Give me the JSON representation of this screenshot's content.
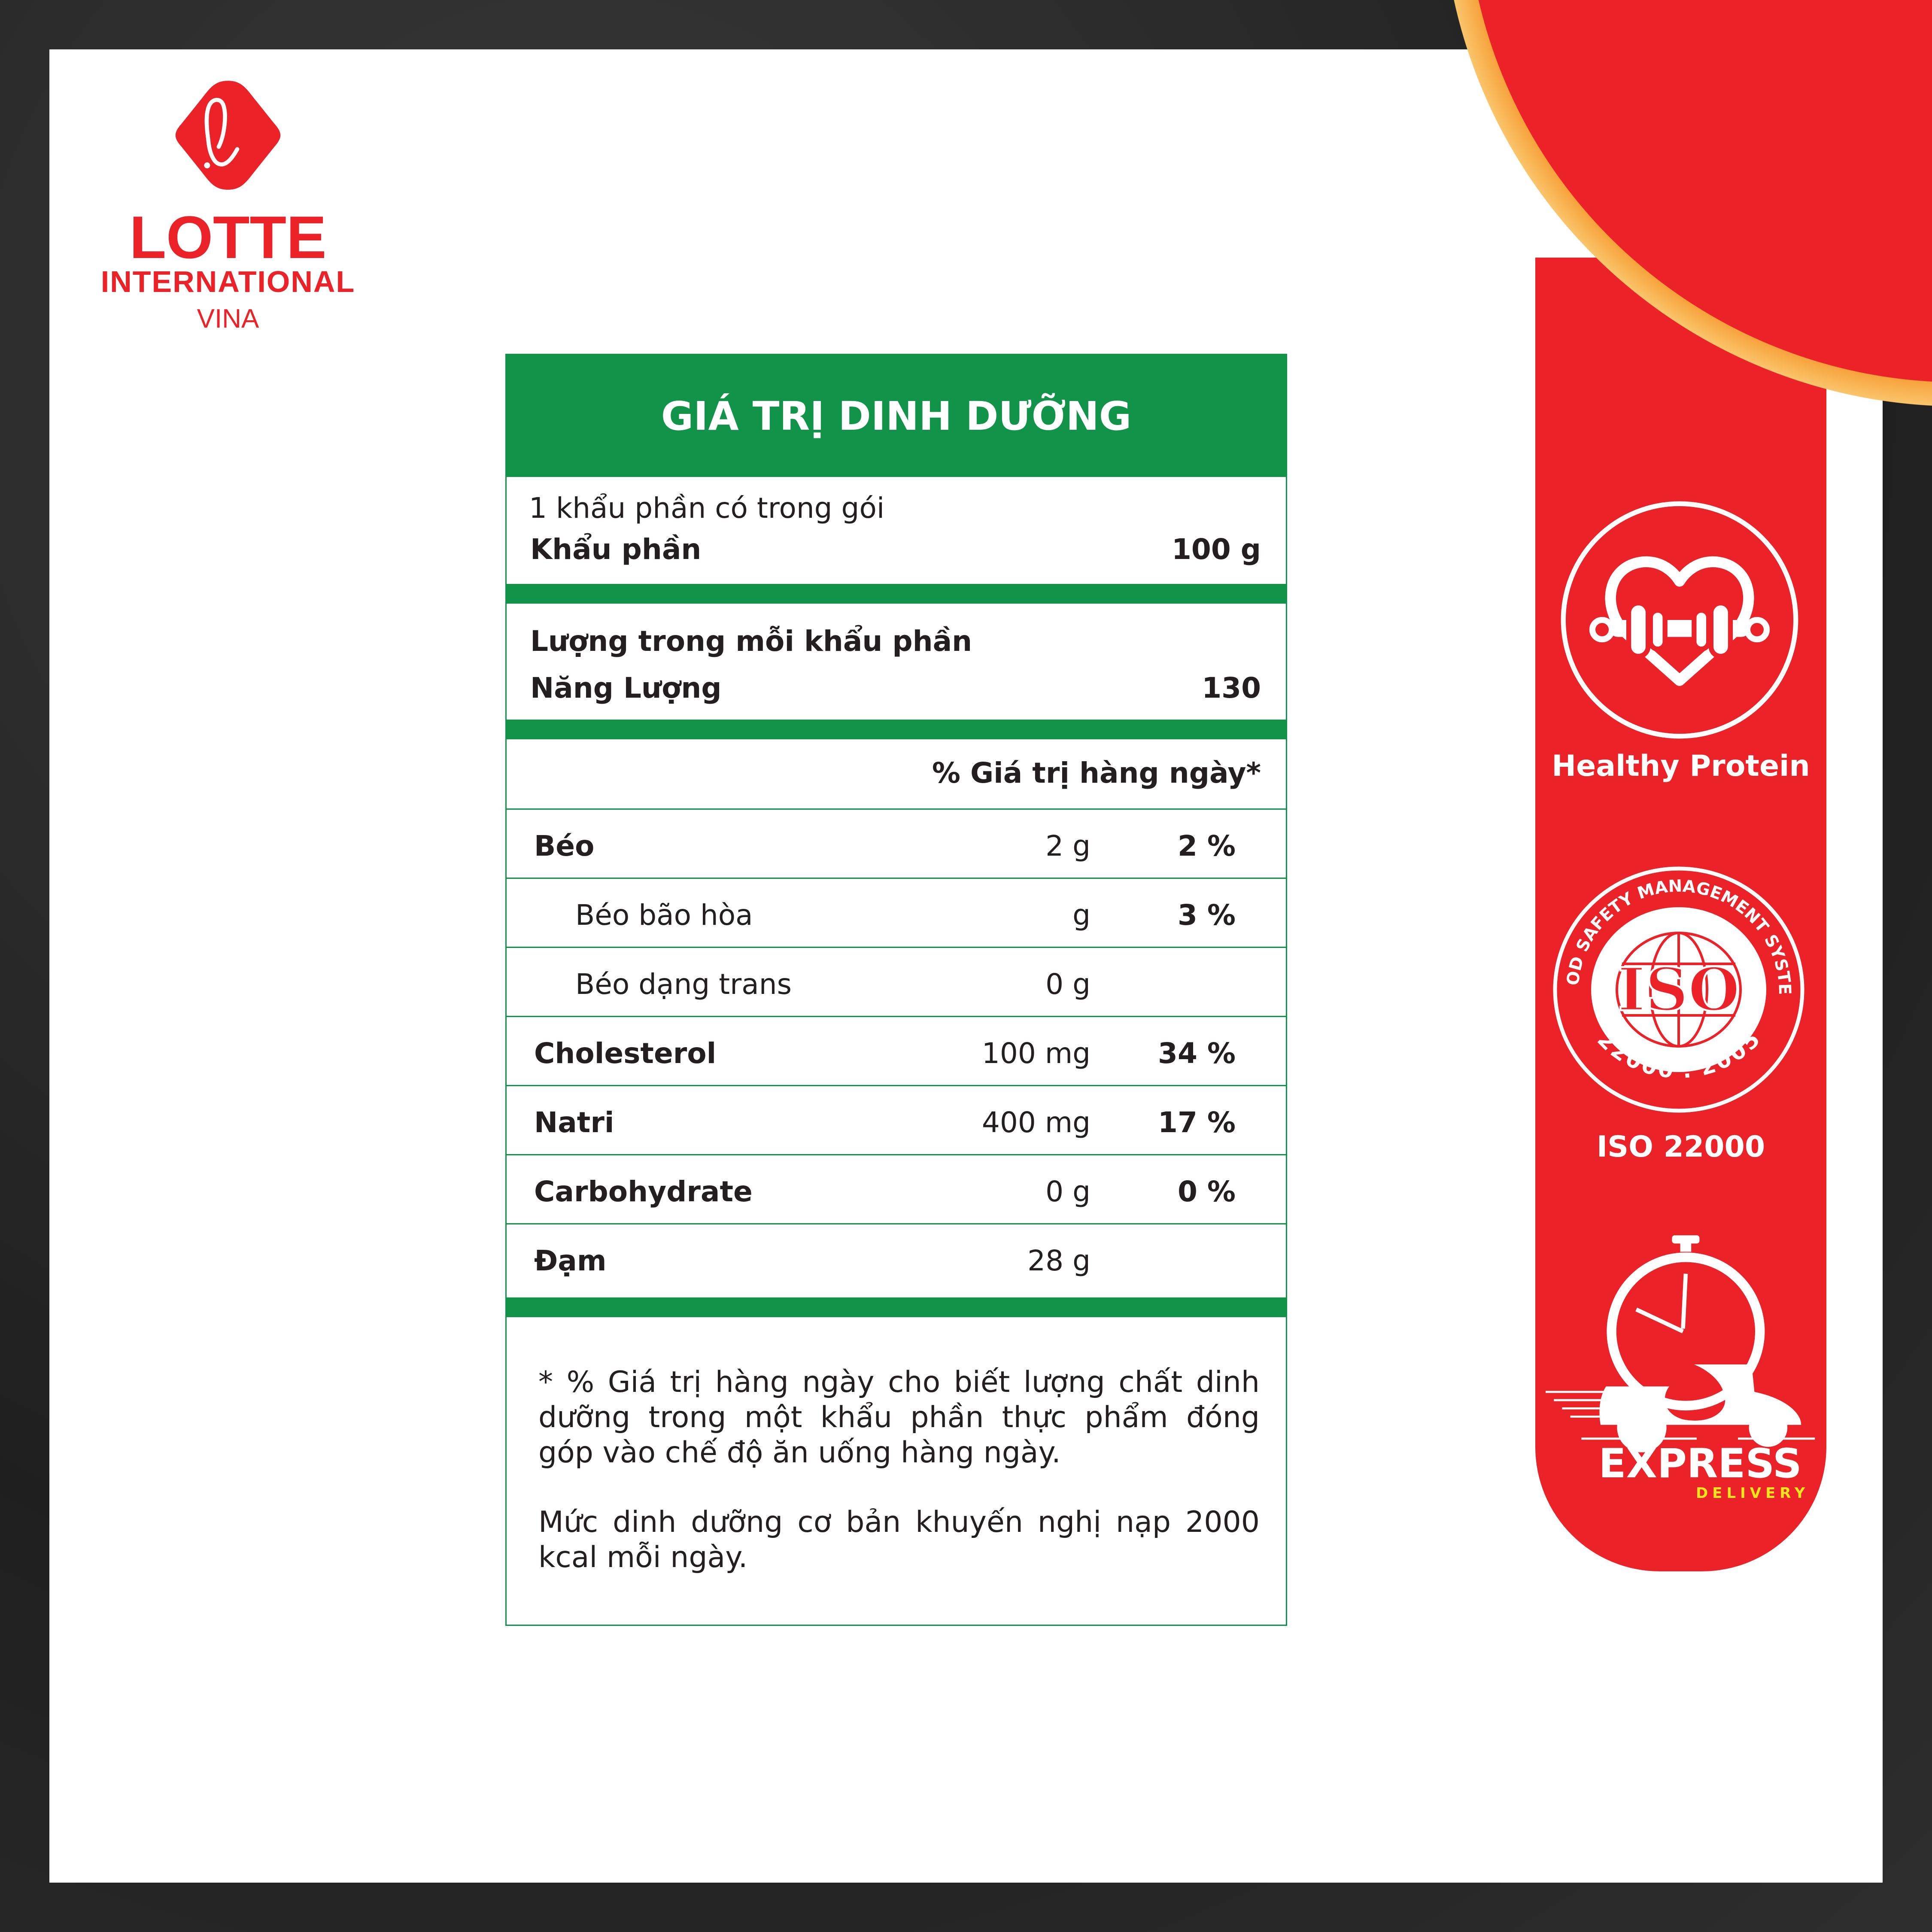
{
  "brand": {
    "name": "LOTTE",
    "line2": "INTERNATIONAL",
    "line3": "VINA",
    "color": "#ec2229"
  },
  "nutrition": {
    "title": "GIÁ TRỊ DINH DƯỠNG",
    "serving_note": "1 khẩu phần có trong gói",
    "serving_label": "Khẩu phần",
    "serving_value": "100 g",
    "per_serving_label": "Lượng trong mỗi khẩu phần",
    "energy_label": "Năng Lượng",
    "energy_value": "130",
    "dv_header": "% Giá trị hàng ngày*",
    "rows": [
      {
        "name": "Béo",
        "amount": "2 g",
        "percent": "2 %"
      },
      {
        "name": "Béo bão hòa",
        "amount": "g",
        "percent": "3 %"
      },
      {
        "name": "Béo dạng trans",
        "amount": "0 g",
        "percent": ""
      },
      {
        "name": "Cholesterol",
        "amount": "100 mg",
        "percent": "34 %"
      },
      {
        "name": "Natri",
        "amount": "400 mg",
        "percent": "17 %"
      },
      {
        "name": "Carbohydrate",
        "amount": "0 g",
        "percent": "0 %"
      },
      {
        "name": "Đạm",
        "amount": "28 g",
        "percent": ""
      }
    ],
    "footnote1": "* % Giá trị hàng ngày cho biết lượng chất dinh dưỡng trong một khẩu phần thực phẩm đóng góp vào chế độ ăn uống hàng ngày.",
    "footnote2": "Mức dinh dưỡng cơ bản khuyến nghị nạp 2000 kcal mỗi ngày.",
    "accent": "#12934a"
  },
  "badges": {
    "protein": {
      "label": "Healthy Protein",
      "icon": "heart-dumbbell-icon"
    },
    "iso": {
      "label": "ISO 22000",
      "seal_top": "FOOD SAFETY MANAGEMENT SYSTEM",
      "seal_center": "ISO",
      "seal_bottom": "22000 : 2005",
      "icon": "iso-seal-icon"
    },
    "express": {
      "label": "EXPRESS",
      "sub": "DELIVERY",
      "icon": "stopwatch-scooter-icon",
      "sub_color": "#f5e61b"
    }
  }
}
